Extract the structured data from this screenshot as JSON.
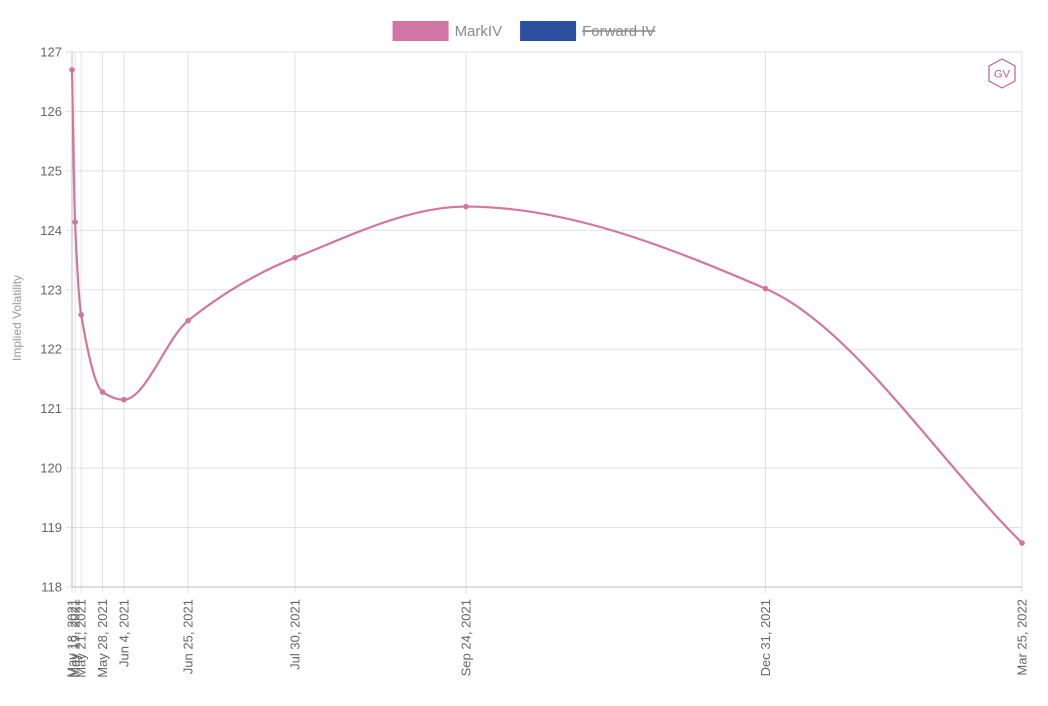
{
  "chart_data": {
    "type": "line",
    "title": "",
    "xlabel": "",
    "ylabel": "Implied Volatility",
    "x_axis_type": "time",
    "ylim": [
      118,
      127
    ],
    "yticks": [
      118,
      119,
      120,
      121,
      122,
      123,
      124,
      125,
      126,
      127
    ],
    "grid": true,
    "legend_position": "top-center",
    "series": [
      {
        "name": "MarkIV",
        "color": "#d176a4",
        "hidden": false,
        "points": [
          {
            "x": "2021-05-18",
            "label": "May 18, 2021",
            "y": 126.7
          },
          {
            "x": "2021-05-19",
            "label": "May 19, 2021",
            "y": 124.14
          },
          {
            "x": "2021-05-21",
            "label": "May 21, 2021",
            "y": 122.58
          },
          {
            "x": "2021-05-28",
            "label": "May 28, 2021",
            "y": 121.28
          },
          {
            "x": "2021-06-04",
            "label": "Jun 4, 2021",
            "y": 121.15
          },
          {
            "x": "2021-06-25",
            "label": "Jun 25, 2021",
            "y": 122.48
          },
          {
            "x": "2021-07-30",
            "label": "Jul 30, 2021",
            "y": 123.54
          },
          {
            "x": "2021-09-24",
            "label": "Sep 24, 2021",
            "y": 124.4
          },
          {
            "x": "2021-12-31",
            "label": "Dec 31, 2021",
            "y": 123.02
          },
          {
            "x": "2022-03-25",
            "label": "Mar 25, 2022",
            "y": 118.74
          }
        ]
      },
      {
        "name": "Forward IV",
        "color": "#2d4fa0",
        "hidden": true,
        "points": []
      }
    ]
  },
  "logo": {
    "text": "GV",
    "color": "#c0608c"
  }
}
